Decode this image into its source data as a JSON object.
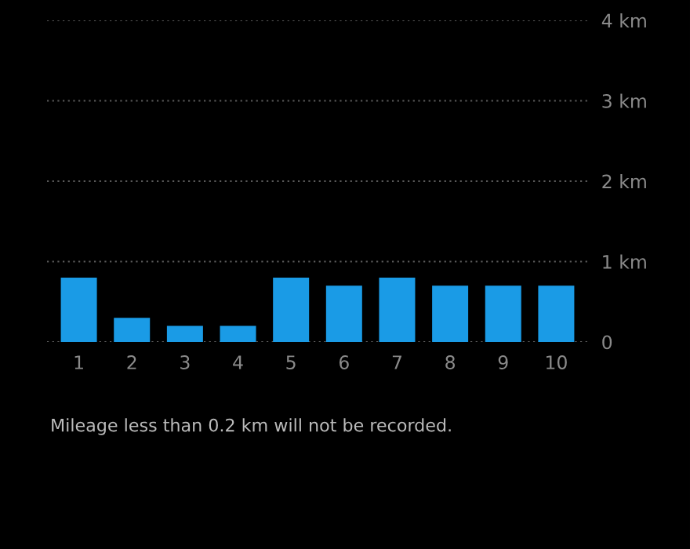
{
  "chart_data": {
    "type": "bar",
    "categories": [
      "1",
      "2",
      "3",
      "4",
      "5",
      "6",
      "7",
      "8",
      "9",
      "10"
    ],
    "values": [
      0.8,
      0.3,
      0.2,
      0.2,
      0.8,
      0.7,
      0.8,
      0.7,
      0.7,
      0.7
    ],
    "color": "#1a9be6",
    "ylim": [
      0,
      4
    ],
    "yticks": [
      {
        "value": 0,
        "label": "0"
      },
      {
        "value": 1,
        "label": "1 km"
      },
      {
        "value": 2,
        "label": "2 km"
      },
      {
        "value": 3,
        "label": "3 km"
      },
      {
        "value": 4,
        "label": "4 km"
      }
    ],
    "grid": "y",
    "annotations": [
      "Mileage less than 0.2 km will not be recorded."
    ]
  }
}
